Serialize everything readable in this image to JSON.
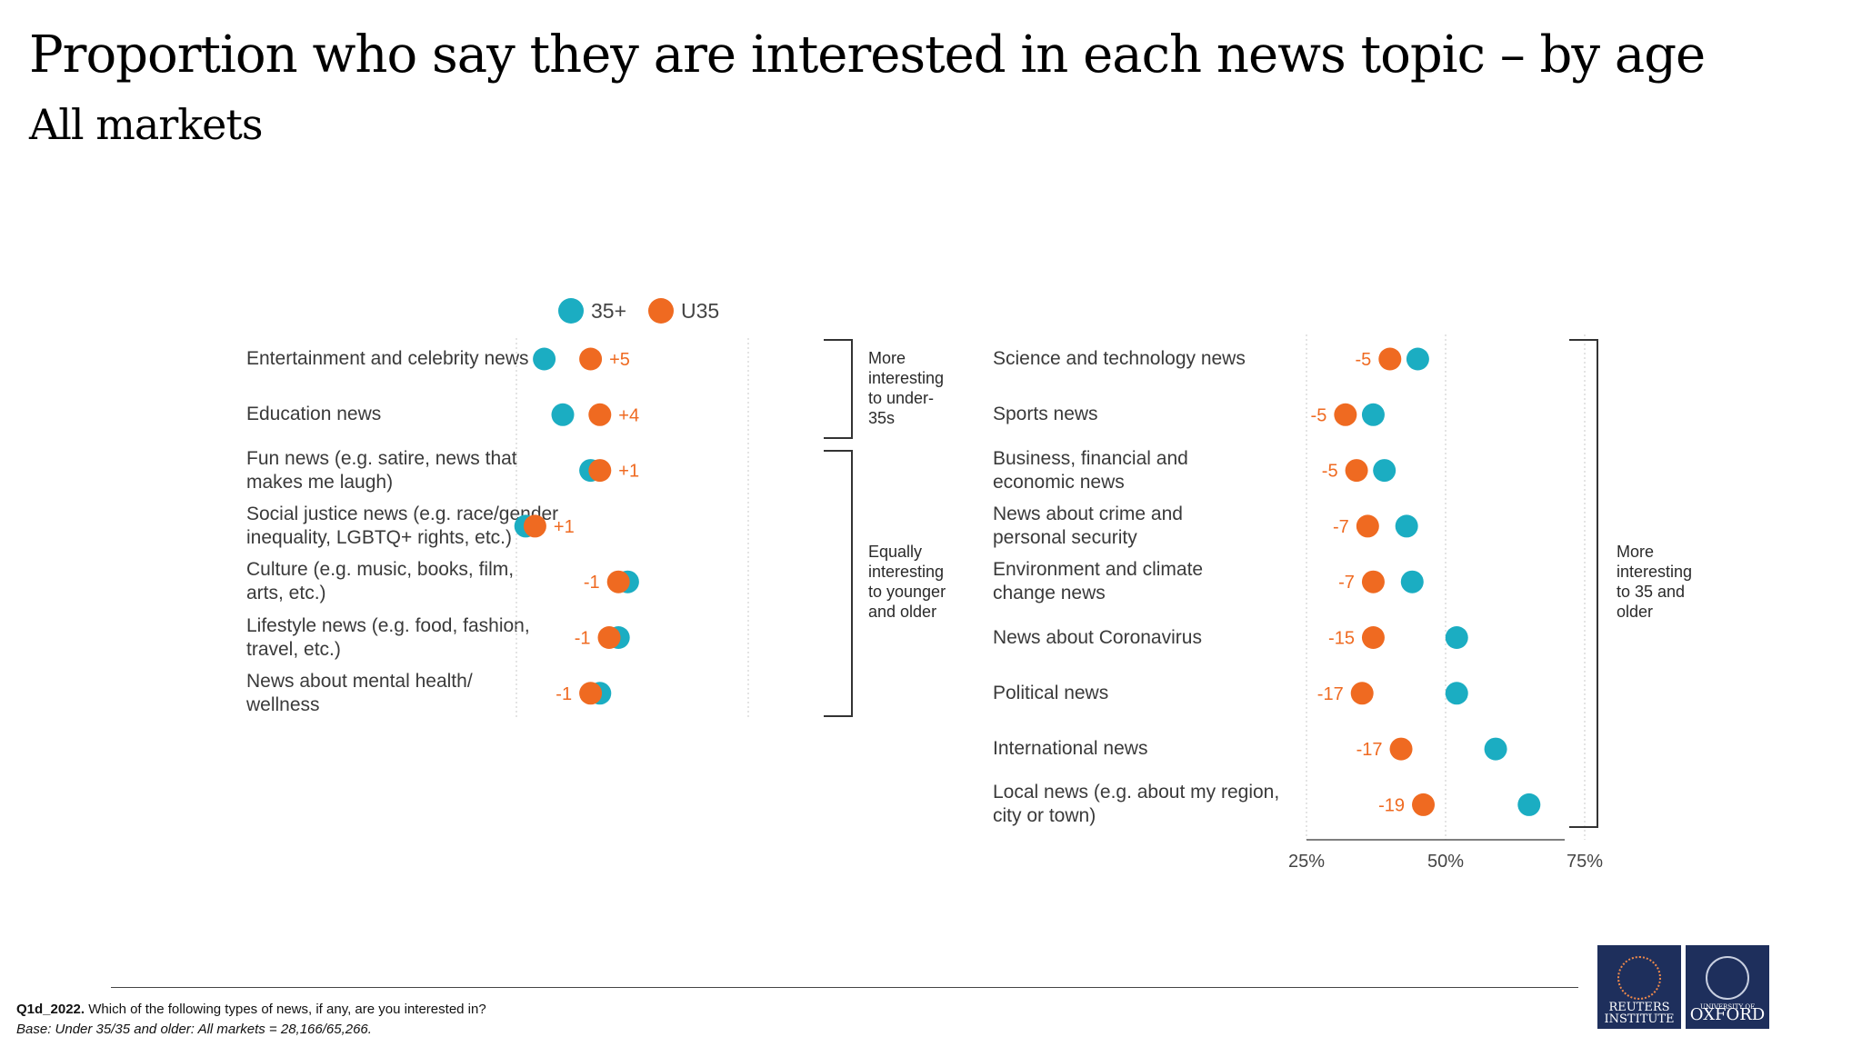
{
  "header": {
    "title": "Proportion who say they are interested in each news topic – by age",
    "subtitle": "All markets"
  },
  "legend": [
    {
      "label": "35+",
      "color": "#1badc2"
    },
    {
      "label": "U35",
      "color": "#ef6a21"
    }
  ],
  "colors": {
    "older": "#1badc2",
    "younger": "#ef6a21",
    "diff": "#ef6a21"
  },
  "brackets": {
    "left_top": "More interesting to under-35s",
    "left_bottom": "Equally interesting to younger and older",
    "right": "More interesting to 35 and older"
  },
  "chart_data": [
    {
      "type": "scatter",
      "series": [
        {
          "name": "35+"
        },
        {
          "name": "U35"
        }
      ],
      "xlim": [
        25,
        75
      ],
      "grid": true,
      "categories": [
        {
          "label": [
            "Entertainment and celebrity news"
          ],
          "older": 28,
          "younger": 33,
          "diff": "+5"
        },
        {
          "label": [
            "Education news"
          ],
          "older": 30,
          "younger": 34,
          "diff": "+4"
        },
        {
          "label": [
            "Fun news (e.g. satire, news that",
            "makes me laugh)"
          ],
          "older": 33,
          "younger": 34,
          "diff": "+1"
        },
        {
          "label": [
            "Social justice news (e.g. race/gender",
            "inequality, LGBTQ+ rights, etc.)"
          ],
          "older": 26,
          "younger": 27,
          "diff": "+1"
        },
        {
          "label": [
            "Culture (e.g. music, books, film,",
            "arts, etc.)"
          ],
          "older": 37,
          "younger": 36,
          "diff": "-1"
        },
        {
          "label": [
            "Lifestyle news (e.g. food, fashion,",
            "travel, etc.)"
          ],
          "older": 36,
          "younger": 35,
          "diff": "-1"
        },
        {
          "label": [
            "News about mental health/",
            "wellness"
          ],
          "older": 34,
          "younger": 33,
          "diff": "-1"
        }
      ]
    },
    {
      "type": "scatter",
      "series": [
        {
          "name": "35+"
        },
        {
          "name": "U35"
        }
      ],
      "xlim": [
        25,
        75
      ],
      "xticks": [
        "25%",
        "50%",
        "75%"
      ],
      "grid": true,
      "categories": [
        {
          "label": [
            "Science and technology news"
          ],
          "older": 45,
          "younger": 40,
          "diff": "-5"
        },
        {
          "label": [
            "Sports news"
          ],
          "older": 37,
          "younger": 32,
          "diff": "-5"
        },
        {
          "label": [
            "Business, financial and",
            "economic news"
          ],
          "older": 39,
          "younger": 34,
          "diff": "-5"
        },
        {
          "label": [
            "News about crime and",
            "personal security"
          ],
          "older": 43,
          "younger": 36,
          "diff": "-7"
        },
        {
          "label": [
            "Environment and climate",
            "change news"
          ],
          "older": 44,
          "younger": 37,
          "diff": "-7"
        },
        {
          "label": [
            "News about Coronavirus"
          ],
          "older": 52,
          "younger": 37,
          "diff": "-15"
        },
        {
          "label": [
            "Political news"
          ],
          "older": 52,
          "younger": 35,
          "diff": "-17"
        },
        {
          "label": [
            "International news"
          ],
          "older": 59,
          "younger": 42,
          "diff": "-17"
        },
        {
          "label": [
            "Local news (e.g. about my region,",
            "city or town)"
          ],
          "older": 65,
          "younger": 46,
          "diff": "-19"
        }
      ]
    }
  ],
  "footer": {
    "question_code": "Q1d_2022.",
    "question_text": " Which of the following types of news, if any, are you interested in?",
    "base": "Base: Under 35/35 and older: All markets = 28,166/65,266."
  },
  "logos": {
    "reuters_line1": "REUTERS",
    "reuters_line2": "INSTITUTE",
    "oxford_line1": "UNIVERSITY OF",
    "oxford_line2": "OXFORD"
  }
}
